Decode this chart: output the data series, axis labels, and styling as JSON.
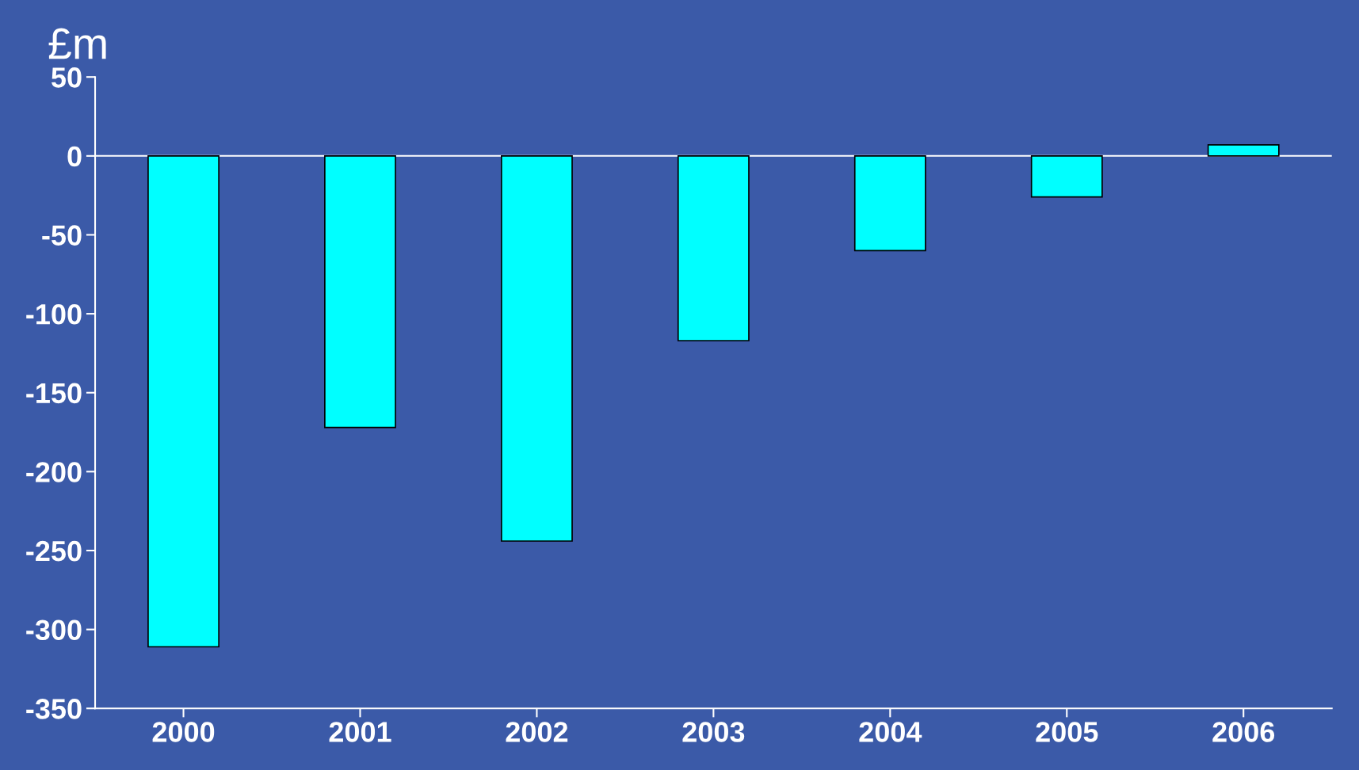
{
  "chart_data": {
    "type": "bar",
    "ylabel": "£m",
    "categories": [
      "2000",
      "2001",
      "2002",
      "2003",
      "2004",
      "2005",
      "2006"
    ],
    "values": [
      -311,
      -172,
      -244,
      -117,
      -60,
      -26,
      7
    ],
    "color": "#00ffff",
    "ylim": [
      -350,
      50
    ],
    "yticks": [
      -350,
      -300,
      -250,
      -200,
      -150,
      -100,
      -50,
      0,
      50
    ],
    "ref_lines": [
      {
        "axis": "y",
        "value": 0,
        "color": "#ffffff"
      }
    ],
    "grid": false,
    "legend": false
  }
}
